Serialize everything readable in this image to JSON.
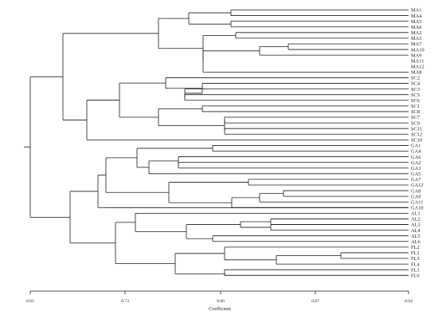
{
  "figure": {
    "xlabel": "Coefficient",
    "ticks": [
      "0.65",
      "0.73",
      "0.80",
      "0.87",
      "0.94"
    ]
  },
  "leaves": [
    "MA1",
    "MA4",
    "MA5",
    "MA6",
    "MA2",
    "MA3",
    "MA7",
    "MA10",
    "MA9",
    "MA11",
    "MA12",
    "MA8",
    "SC2",
    "SC4",
    "SC3",
    "SC5",
    "SC6",
    "SC1",
    "SC8",
    "SC7",
    "SC9",
    "SC11",
    "SC12",
    "SC10",
    "GA1",
    "GA4",
    "GA6",
    "GA2",
    "GA3",
    "GA5",
    "GA7",
    "GA12",
    "GA8",
    "GA9",
    "GA11",
    "GA10",
    "AL1",
    "AL2",
    "AL3",
    "AL4",
    "AL5",
    "AL6",
    "FL2",
    "FL1",
    "FL5",
    "FL4",
    "FL3",
    "FL6"
  ]
}
